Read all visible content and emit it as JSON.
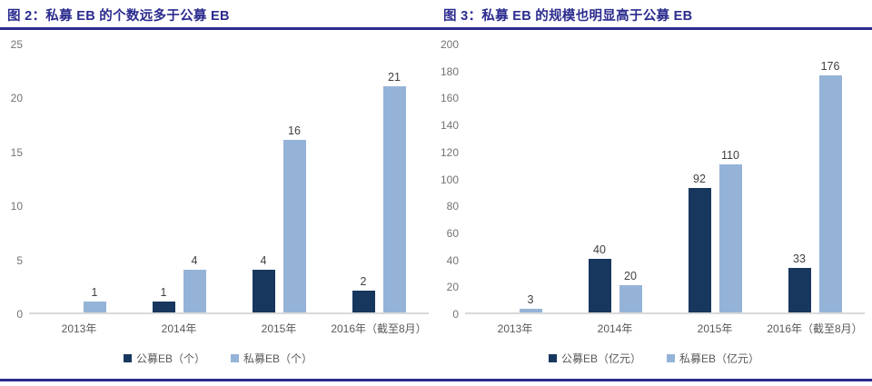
{
  "page": {
    "background": "#ffffff",
    "accent_navy": "#2b2b8f",
    "bar_dark": "#17375e",
    "bar_light": "#95b3d7",
    "axis_line_gray": "#d9d9d9",
    "tick_text_gray": "#737373",
    "label_text_gray": "#595959",
    "data_label_gray": "#404040"
  },
  "chart_data": [
    {
      "type": "bar",
      "title": "图 2：私募 EB 的个数远多于公募 EB",
      "categories": [
        "2013年",
        "2014年",
        "2015年",
        "2016年（截至8月）"
      ],
      "series": [
        {
          "name": "公募EB（个）",
          "color": "#17375e",
          "values": [
            0,
            1,
            4,
            2
          ]
        },
        {
          "name": "私募EB（个）",
          "color": "#95b3d7",
          "values": [
            1,
            4,
            16,
            21
          ]
        }
      ],
      "ylim": [
        0,
        25
      ],
      "ytick_step": 5,
      "grid": false,
      "data_labels": true,
      "legend_position": "bottom",
      "xlabel": "",
      "ylabel": ""
    },
    {
      "type": "bar",
      "title": "图 3：私募 EB 的规模也明显高于公募 EB",
      "categories": [
        "2013年",
        "2014年",
        "2015年",
        "2016年（截至8月）"
      ],
      "series": [
        {
          "name": "公募EB（亿元）",
          "color": "#17375e",
          "values": [
            0,
            40,
            92,
            33
          ]
        },
        {
          "name": "私募EB（亿元）",
          "color": "#95b3d7",
          "values": [
            3,
            20,
            110,
            176
          ]
        }
      ],
      "ylim": [
        0,
        200
      ],
      "ytick_step": 20,
      "grid": false,
      "data_labels": true,
      "legend_position": "bottom",
      "xlabel": "",
      "ylabel": ""
    }
  ]
}
